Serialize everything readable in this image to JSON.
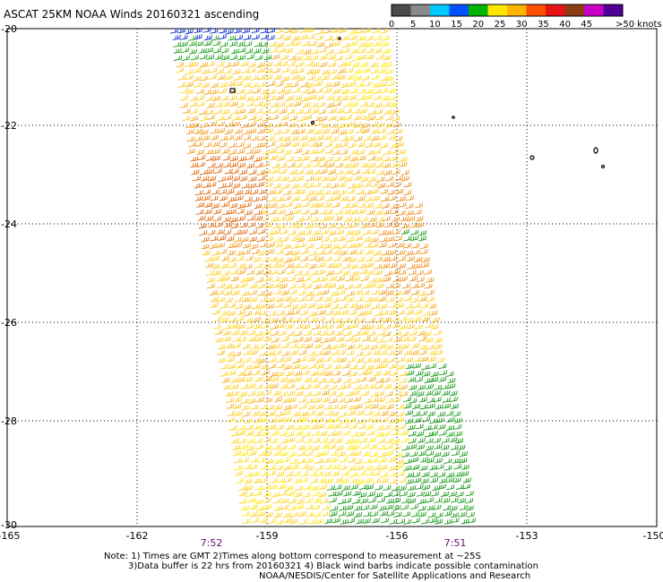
{
  "title": "ASCAT 25KM NOAA Winds 20160321 ascending",
  "colorbar": {
    "labels": [
      "0",
      "5",
      "10",
      "15",
      "20",
      "25",
      "30",
      "35",
      "40",
      "45",
      ">50 knots"
    ],
    "colors": [
      "#4a4a4a",
      "#8a8a8a",
      "#00c8ff",
      "#0050ff",
      "#00b400",
      "#ffe600",
      "#ffb400",
      "#ff5000",
      "#e61414",
      "#8c3c14",
      "#c800c8",
      "#500096"
    ]
  },
  "map": {
    "lon_labels": [
      "-165",
      "-162",
      "-159",
      "-156",
      "-153",
      "-150"
    ],
    "lat_labels": [
      "-20",
      "-22",
      "-24",
      "-26",
      "-28",
      "-30"
    ],
    "time_labels": [
      "7:52",
      "7:51"
    ],
    "grid": "dotted"
  },
  "notes": [
    "Note: 1) Times are GMT 2)Times along bottom correspond to measurement at ~25S",
    "3)Data buffer is 22 hrs from 20160321 4) Black wind barbs indicate possible contamination",
    "NOAA/NESDIS/Center for Satellite Applications and Research"
  ]
}
